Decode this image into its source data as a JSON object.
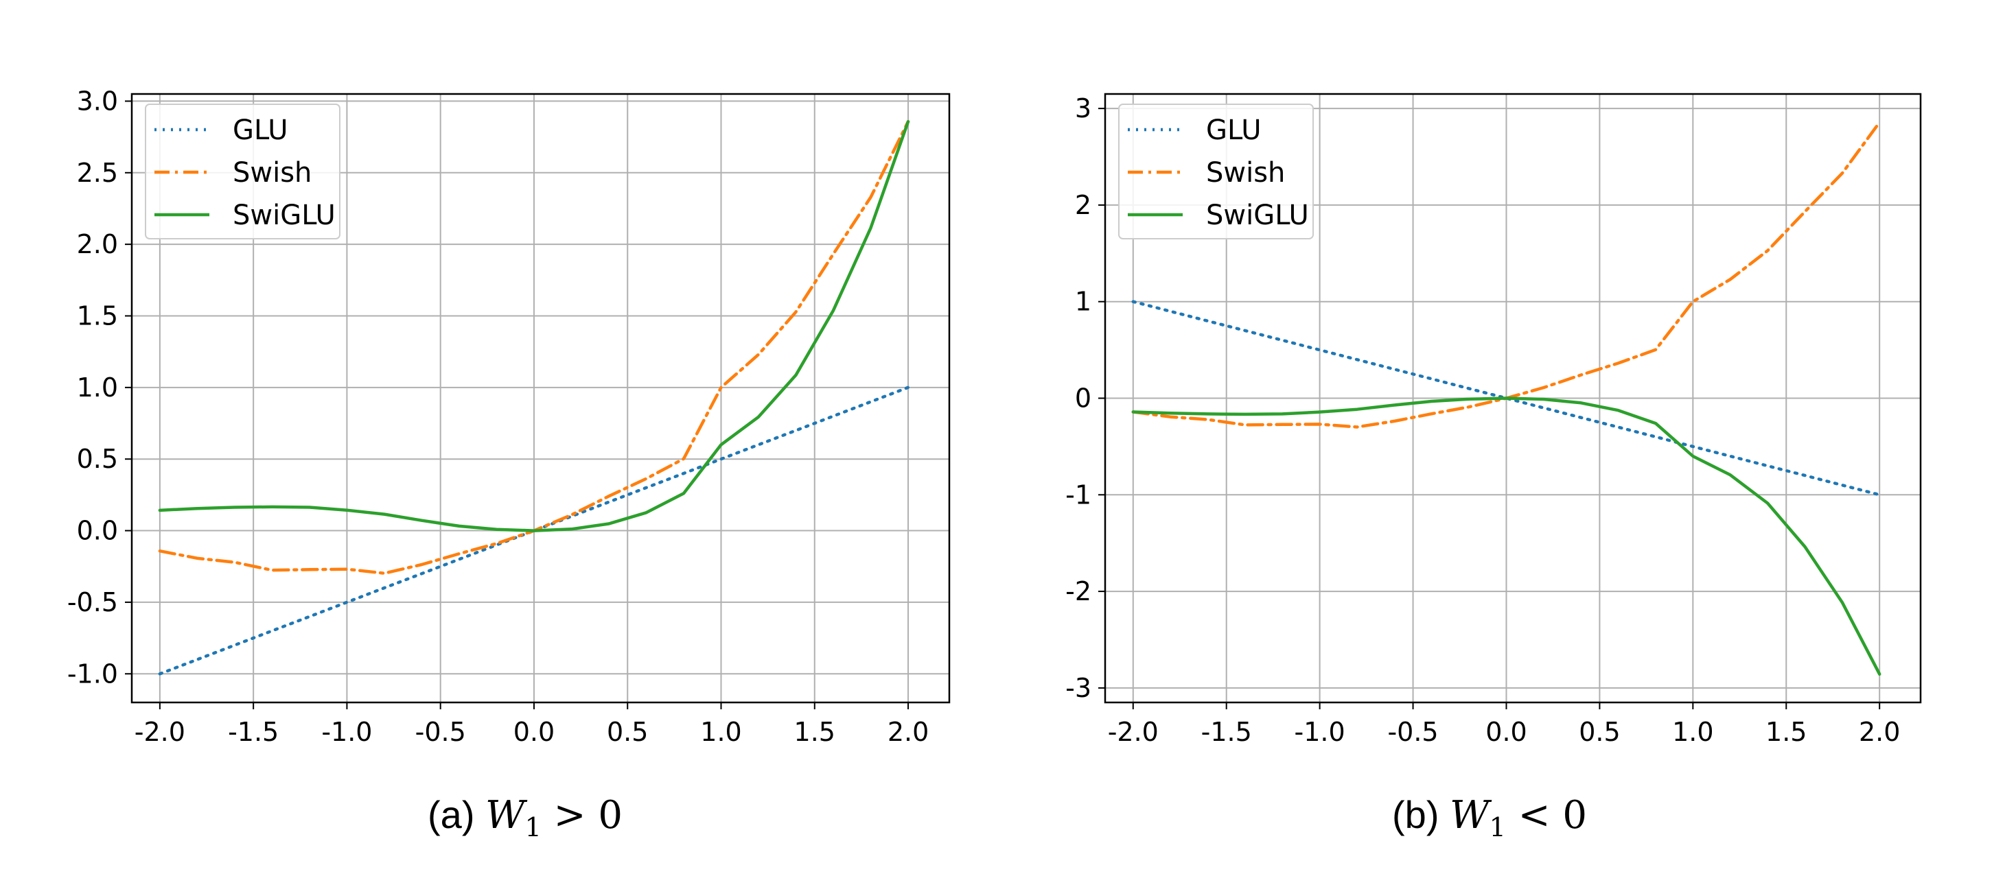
{
  "chart_data": [
    {
      "type": "line",
      "caption": {
        "label": "(a)",
        "math_var": "W",
        "math_sub": "1",
        "math_op": ">",
        "math_rhs": "0"
      },
      "xlim": [
        -2.15,
        2.22
      ],
      "ylim": [
        -1.2,
        3.05
      ],
      "x_ticks": [
        -2.0,
        -1.5,
        -1.0,
        -0.5,
        0.0,
        0.5,
        1.0,
        1.5,
        2.0
      ],
      "y_ticks": [
        -1.0,
        -0.5,
        0.0,
        0.5,
        1.0,
        1.5,
        2.0,
        2.5,
        3.0
      ],
      "x_tick_labels": [
        "-2.0",
        "-1.5",
        "-1.0",
        "-0.5",
        "0.0",
        "0.5",
        "1.0",
        "1.5",
        "2.0"
      ],
      "y_tick_labels": [
        "-1.0",
        "-0.5",
        "0.0",
        "0.5",
        "1.0",
        "1.5",
        "2.0",
        "2.5",
        "3.0"
      ],
      "grid": true,
      "legend_position": "top-left",
      "x": [
        -2.0,
        -1.8,
        -1.6,
        -1.4,
        -1.2,
        -1.0,
        -0.8,
        -0.6,
        -0.4,
        -0.2,
        0.0,
        0.2,
        0.4,
        0.6,
        0.8,
        1.0,
        1.2,
        1.4,
        1.6,
        1.8,
        2.0
      ],
      "series": [
        {
          "name": "GLU",
          "color": "#1f77b4",
          "dash": "dotted",
          "values": [
            -1.0,
            -0.9,
            -0.8,
            -0.7,
            -0.6,
            -0.5,
            -0.4,
            -0.3,
            -0.2,
            -0.1,
            0.0,
            0.1,
            0.2,
            0.3,
            0.4,
            0.5,
            0.6,
            0.7,
            0.8,
            0.9,
            1.0
          ]
        },
        {
          "name": "Swish",
          "color": "#ff7f0e",
          "dash": "dashdot",
          "values": [
            -0.142,
            -0.193,
            -0.221,
            -0.276,
            -0.272,
            -0.269,
            -0.298,
            -0.237,
            -0.161,
            -0.09,
            0.0,
            0.11,
            0.241,
            0.363,
            0.502,
            1.0,
            1.23,
            1.528,
            1.932,
            2.329,
            2.857
          ]
        },
        {
          "name": "SwiGLU",
          "color": "#2ca02c",
          "dash": "solid",
          "values": [
            0.142,
            0.155,
            0.163,
            0.166,
            0.163,
            0.143,
            0.115,
            0.071,
            0.032,
            0.009,
            0.0,
            0.011,
            0.048,
            0.126,
            0.26,
            0.6,
            0.794,
            1.087,
            1.538,
            2.114,
            2.857
          ]
        }
      ]
    },
    {
      "type": "line",
      "caption": {
        "label": "(b)",
        "math_var": "W",
        "math_sub": "1",
        "math_op": "<",
        "math_rhs": "0"
      },
      "xlim": [
        -2.15,
        2.22
      ],
      "ylim": [
        -3.15,
        3.15
      ],
      "x_ticks": [
        -2.0,
        -1.5,
        -1.0,
        -0.5,
        0.0,
        0.5,
        1.0,
        1.5,
        2.0
      ],
      "y_ticks": [
        -3,
        -2,
        -1,
        0,
        1,
        2,
        3
      ],
      "x_tick_labels": [
        "-2.0",
        "-1.5",
        "-1.0",
        "-0.5",
        "0.0",
        "0.5",
        "1.0",
        "1.5",
        "2.0"
      ],
      "y_tick_labels": [
        "-3",
        "-2",
        "-1",
        "0",
        "1",
        "2",
        "3"
      ],
      "grid": true,
      "legend_position": "top-left",
      "x": [
        -2.0,
        -1.8,
        -1.6,
        -1.4,
        -1.2,
        -1.0,
        -0.8,
        -0.6,
        -0.4,
        -0.2,
        0.0,
        0.2,
        0.4,
        0.6,
        0.8,
        1.0,
        1.2,
        1.4,
        1.6,
        1.8,
        2.0
      ],
      "series": [
        {
          "name": "GLU",
          "color": "#1f77b4",
          "dash": "dotted",
          "values": [
            1.0,
            0.9,
            0.8,
            0.7,
            0.6,
            0.5,
            0.4,
            0.3,
            0.2,
            0.1,
            0.0,
            -0.1,
            -0.2,
            -0.3,
            -0.4,
            -0.5,
            -0.6,
            -0.7,
            -0.8,
            -0.9,
            -1.0
          ]
        },
        {
          "name": "Swish",
          "color": "#ff7f0e",
          "dash": "dashdot",
          "values": [
            -0.142,
            -0.193,
            -0.221,
            -0.276,
            -0.272,
            -0.269,
            -0.298,
            -0.237,
            -0.161,
            -0.09,
            0.0,
            0.11,
            0.241,
            0.363,
            0.502,
            1.0,
            1.23,
            1.528,
            1.932,
            2.329,
            2.857
          ]
        },
        {
          "name": "SwiGLU",
          "color": "#2ca02c",
          "dash": "solid",
          "values": [
            -0.142,
            -0.155,
            -0.163,
            -0.166,
            -0.163,
            -0.143,
            -0.115,
            -0.071,
            -0.032,
            -0.009,
            0.0,
            -0.011,
            -0.048,
            -0.126,
            -0.26,
            -0.6,
            -0.794,
            -1.087,
            -1.538,
            -2.114,
            -2.857
          ]
        }
      ]
    }
  ]
}
